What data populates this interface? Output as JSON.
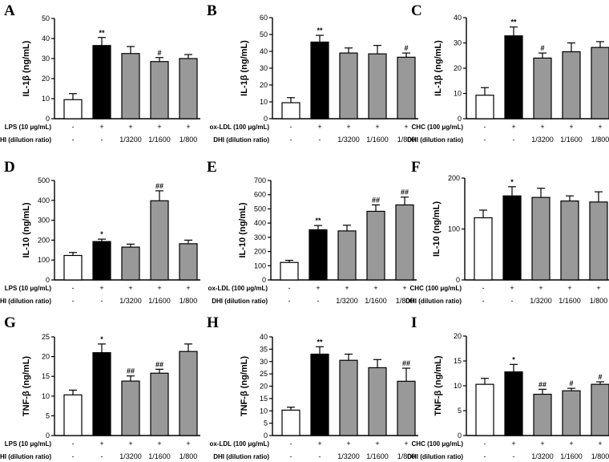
{
  "chart_data": [
    {
      "panel": "A",
      "type": "bar",
      "ylabel": "IL-1β (ng/mL)",
      "ylim": [
        0,
        50
      ],
      "yticks": [
        0,
        10,
        20,
        30,
        40,
        50
      ],
      "treatment_label": "LPS (10 μg/mL)",
      "treatment": [
        "-",
        "+",
        "+",
        "+",
        "+"
      ],
      "dhi_label": "DHI (dilution ratio)",
      "dhi": [
        "-",
        "-",
        "1/3200",
        "1/1600",
        "1/800"
      ],
      "values": [
        9.5,
        36.5,
        32.5,
        28.5,
        30.0
      ],
      "errors": [
        3.0,
        4.0,
        3.5,
        2.0,
        2.0
      ],
      "significance": [
        "",
        "**",
        "",
        "#",
        ""
      ],
      "colors": [
        "#ffffff",
        "#000000",
        "#999999",
        "#999999",
        "#999999"
      ]
    },
    {
      "panel": "B",
      "type": "bar",
      "ylabel": "IL-1β (ng/mL)",
      "ylim": [
        0,
        60
      ],
      "yticks": [
        0,
        10,
        20,
        30,
        40,
        50,
        60
      ],
      "treatment_label": "ox-LDL (100 μg/mL)",
      "treatment": [
        "-",
        "+",
        "+",
        "+",
        "+"
      ],
      "dhi_label": "DHI (dilution ratio)",
      "dhi": [
        "-",
        "-",
        "1/3200",
        "1/1600",
        "1/800"
      ],
      "values": [
        9.5,
        45.5,
        39.0,
        38.5,
        36.5
      ],
      "errors": [
        3.0,
        4.0,
        3.0,
        5.0,
        2.5
      ],
      "significance": [
        "",
        "**",
        "",
        "",
        "#"
      ],
      "colors": [
        "#ffffff",
        "#000000",
        "#999999",
        "#999999",
        "#999999"
      ]
    },
    {
      "panel": "C",
      "type": "bar",
      "ylabel": "IL-1β (ng/mL)",
      "ylim": [
        0,
        40
      ],
      "yticks": [
        0,
        10,
        20,
        30,
        40
      ],
      "treatment_label": "CHC (100 μg/mL)",
      "treatment": [
        "-",
        "+",
        "+",
        "+",
        "+"
      ],
      "dhi_label": "DHI (dilution ratio)",
      "dhi": [
        "-",
        "-",
        "1/3200",
        "1/1600",
        "1/800"
      ],
      "values": [
        9.3,
        32.8,
        24.0,
        26.5,
        28.2
      ],
      "errors": [
        3.0,
        3.5,
        2.0,
        3.5,
        2.3
      ],
      "significance": [
        "",
        "**",
        "#",
        "",
        ""
      ],
      "colors": [
        "#ffffff",
        "#000000",
        "#999999",
        "#999999",
        "#999999"
      ]
    },
    {
      "panel": "D",
      "type": "bar",
      "ylabel": "IL-10 (ng/mL)",
      "ylim": [
        0,
        500
      ],
      "yticks": [
        0,
        100,
        200,
        300,
        400,
        500
      ],
      "treatment_label": "LPS (10 μg/mL)",
      "treatment": [
        "-",
        "+",
        "+",
        "+",
        "+"
      ],
      "dhi_label": "DHI (dilution ratio)",
      "dhi": [
        "-",
        "-",
        "1/3200",
        "1/1600",
        "1/800"
      ],
      "values": [
        123,
        193,
        165,
        398,
        182
      ],
      "errors": [
        15,
        12,
        15,
        50,
        18
      ],
      "significance": [
        "",
        "*",
        "",
        "##",
        ""
      ],
      "colors": [
        "#ffffff",
        "#000000",
        "#999999",
        "#999999",
        "#999999"
      ]
    },
    {
      "panel": "E",
      "type": "bar",
      "ylabel": "IL-10 (ng/mL)",
      "ylim": [
        0,
        700
      ],
      "yticks": [
        0,
        100,
        200,
        300,
        400,
        500,
        600,
        700
      ],
      "treatment_label": "ox-LDL (100 μg/mL)",
      "treatment": [
        "-",
        "+",
        "+",
        "+",
        "+"
      ],
      "dhi_label": "DHI (dilution ratio)",
      "dhi": [
        "-",
        "-",
        "1/3200",
        "1/1600",
        "1/800"
      ],
      "values": [
        123,
        353,
        345,
        483,
        528
      ],
      "errors": [
        15,
        30,
        40,
        45,
        55
      ],
      "significance": [
        "",
        "**",
        "",
        "##",
        "##"
      ],
      "colors": [
        "#ffffff",
        "#000000",
        "#999999",
        "#999999",
        "#999999"
      ]
    },
    {
      "panel": "F",
      "type": "bar",
      "ylabel": "IL-10 (ng/mL)",
      "ylim": [
        0,
        200
      ],
      "yticks": [
        0,
        100,
        200
      ],
      "treatment_label": "CHC (100 μg/mL)",
      "treatment": [
        "-",
        "+",
        "+",
        "+",
        "+"
      ],
      "dhi_label": "DHI (dilution ratio)",
      "dhi": [
        "-",
        "-",
        "1/3200",
        "1/1600",
        "1/800"
      ],
      "values": [
        122,
        165,
        162,
        155,
        153
      ],
      "errors": [
        15,
        18,
        18,
        10,
        20
      ],
      "significance": [
        "",
        "*",
        "",
        "",
        ""
      ],
      "colors": [
        "#ffffff",
        "#000000",
        "#999999",
        "#999999",
        "#999999"
      ]
    },
    {
      "panel": "G",
      "type": "bar",
      "ylabel": "TNF-β (ng/mL)",
      "ylim": [
        0,
        25
      ],
      "yticks": [
        0,
        5,
        10,
        15,
        20,
        25
      ],
      "treatment_label": "LPS (10 μg/mL)",
      "treatment": [
        "-",
        "+",
        "+",
        "+",
        "+"
      ],
      "dhi_label": "DHI (dilution ratio)",
      "dhi": [
        "-",
        "-",
        "1/3200",
        "1/1600",
        "1/800"
      ],
      "values": [
        10.3,
        21.0,
        13.8,
        15.8,
        21.3
      ],
      "errors": [
        1.2,
        2.2,
        1.3,
        1.0,
        1.9
      ],
      "significance": [
        "",
        "*",
        "##",
        "##",
        ""
      ],
      "colors": [
        "#ffffff",
        "#000000",
        "#999999",
        "#999999",
        "#999999"
      ]
    },
    {
      "panel": "H",
      "type": "bar",
      "ylabel": "TNF-β (ng/mL)",
      "ylim": [
        0,
        40
      ],
      "yticks": [
        0,
        5,
        10,
        15,
        20,
        25,
        30,
        35,
        40
      ],
      "treatment_label": "ox-LDL (100 μg/mL)",
      "treatment": [
        "-",
        "+",
        "+",
        "+",
        "+"
      ],
      "dhi_label": "DHI (dilution ratio)",
      "dhi": [
        "-",
        "-",
        "1/3200",
        "1/1600",
        "1/800"
      ],
      "values": [
        10.3,
        33.0,
        30.5,
        27.5,
        22.0
      ],
      "errors": [
        1.2,
        3.0,
        2.5,
        3.3,
        5.3
      ],
      "significance": [
        "",
        "**",
        "",
        "",
        "##"
      ],
      "colors": [
        "#ffffff",
        "#000000",
        "#999999",
        "#999999",
        "#999999"
      ]
    },
    {
      "panel": "I",
      "type": "bar",
      "ylabel": "TNF-β (ng/mL)",
      "ylim": [
        0,
        20
      ],
      "yticks": [
        0,
        5,
        10,
        15,
        20
      ],
      "treatment_label": "CHC (100 μg/mL)",
      "treatment": [
        "-",
        "+",
        "+",
        "+",
        "+"
      ],
      "dhi_label": "DHI (dilution ratio)",
      "dhi": [
        "-",
        "-",
        "1/3200",
        "1/1600",
        "1/800"
      ],
      "values": [
        10.3,
        12.8,
        8.3,
        9.0,
        10.3
      ],
      "errors": [
        1.2,
        1.5,
        1.0,
        0.5,
        0.5
      ],
      "significance": [
        "",
        "*",
        "##",
        "#",
        "#"
      ],
      "colors": [
        "#ffffff",
        "#000000",
        "#999999",
        "#999999",
        "#999999"
      ]
    }
  ]
}
